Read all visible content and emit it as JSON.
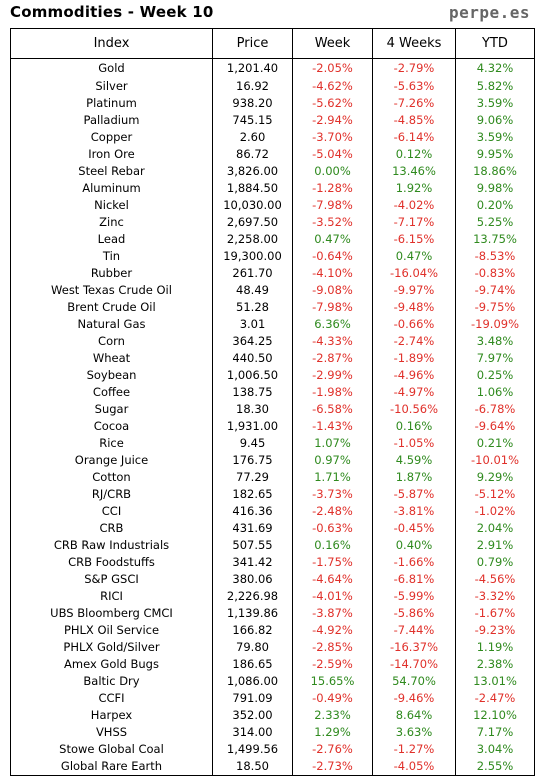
{
  "header": {
    "title": "Commodities - Week 10",
    "brand": "perpe.es"
  },
  "columns": [
    "Index",
    "Price",
    "Week",
    "4 Weeks",
    "YTD"
  ],
  "colors": {
    "negative": "#e0302a",
    "positive": "#2f8a1e"
  },
  "rows": [
    [
      "Gold",
      "1,201.40",
      "-2.05%",
      "-2.79%",
      "4.32%"
    ],
    [
      "Silver",
      "16.92",
      "-4.62%",
      "-5.63%",
      "5.82%"
    ],
    [
      "Platinum",
      "938.20",
      "-5.62%",
      "-7.26%",
      "3.59%"
    ],
    [
      "Palladium",
      "745.15",
      "-2.94%",
      "-4.85%",
      "9.06%"
    ],
    [
      "Copper",
      "2.60",
      "-3.70%",
      "-6.14%",
      "3.59%"
    ],
    [
      "Iron Ore",
      "86.72",
      "-5.04%",
      "0.12%",
      "9.95%"
    ],
    [
      "Steel Rebar",
      "3,826.00",
      "0.00%",
      "13.46%",
      "18.86%"
    ],
    [
      "Aluminum",
      "1,884.50",
      "-1.28%",
      "1.92%",
      "9.98%"
    ],
    [
      "Nickel",
      "10,030.00",
      "-7.98%",
      "-4.02%",
      "0.20%"
    ],
    [
      "Zinc",
      "2,697.50",
      "-3.52%",
      "-7.17%",
      "5.25%"
    ],
    [
      "Lead",
      "2,258.00",
      "0.47%",
      "-6.15%",
      "13.75%"
    ],
    [
      "Tin",
      "19,300.00",
      "-0.64%",
      "0.47%",
      "-8.53%"
    ],
    [
      "Rubber",
      "261.70",
      "-4.10%",
      "-16.04%",
      "-0.83%"
    ],
    [
      "West Texas Crude Oil",
      "48.49",
      "-9.08%",
      "-9.97%",
      "-9.74%"
    ],
    [
      "Brent Crude Oil",
      "51.28",
      "-7.98%",
      "-9.48%",
      "-9.75%"
    ],
    [
      "Natural Gas",
      "3.01",
      "6.36%",
      "-0.66%",
      "-19.09%"
    ],
    [
      "Corn",
      "364.25",
      "-4.33%",
      "-2.74%",
      "3.48%"
    ],
    [
      "Wheat",
      "440.50",
      "-2.87%",
      "-1.89%",
      "7.97%"
    ],
    [
      "Soybean",
      "1,006.50",
      "-2.99%",
      "-4.96%",
      "0.25%"
    ],
    [
      "Coffee",
      "138.75",
      "-1.98%",
      "-4.97%",
      "1.06%"
    ],
    [
      "Sugar",
      "18.30",
      "-6.58%",
      "-10.56%",
      "-6.78%"
    ],
    [
      "Cocoa",
      "1,931.00",
      "-1.43%",
      "0.16%",
      "-9.64%"
    ],
    [
      "Rice",
      "9.45",
      "1.07%",
      "-1.05%",
      "0.21%"
    ],
    [
      "Orange Juice",
      "176.75",
      "0.97%",
      "4.59%",
      "-10.01%"
    ],
    [
      "Cotton",
      "77.29",
      "1.71%",
      "1.87%",
      "9.29%"
    ],
    [
      "RJ/CRB",
      "182.65",
      "-3.73%",
      "-5.87%",
      "-5.12%"
    ],
    [
      "CCI",
      "416.36",
      "-2.48%",
      "-3.81%",
      "-1.02%"
    ],
    [
      "CRB",
      "431.69",
      "-0.63%",
      "-0.45%",
      "2.04%"
    ],
    [
      "CRB Raw Industrials",
      "507.55",
      "0.16%",
      "0.40%",
      "2.91%"
    ],
    [
      "CRB Foodstuffs",
      "341.42",
      "-1.75%",
      "-1.66%",
      "0.79%"
    ],
    [
      "S&P GSCI",
      "380.06",
      "-4.64%",
      "-6.81%",
      "-4.56%"
    ],
    [
      "RICI",
      "2,226.98",
      "-4.01%",
      "-5.99%",
      "-3.32%"
    ],
    [
      "UBS Bloomberg CMCI",
      "1,139.86",
      "-3.87%",
      "-5.86%",
      "-1.67%"
    ],
    [
      "PHLX Oil Service",
      "166.82",
      "-4.92%",
      "-7.44%",
      "-9.23%"
    ],
    [
      "PHLX Gold/Silver",
      "79.80",
      "-2.85%",
      "-16.37%",
      "1.19%"
    ],
    [
      "Amex Gold Bugs",
      "186.65",
      "-2.59%",
      "-14.70%",
      "2.38%"
    ],
    [
      "Baltic Dry",
      "1,086.00",
      "15.65%",
      "54.70%",
      "13.01%"
    ],
    [
      "CCFI",
      "791.09",
      "-0.49%",
      "-9.46%",
      "-2.47%"
    ],
    [
      "Harpex",
      "352.00",
      "2.33%",
      "8.64%",
      "12.10%"
    ],
    [
      "VHSS",
      "314.00",
      "1.29%",
      "3.63%",
      "7.17%"
    ],
    [
      "Stowe Global Coal",
      "1,499.56",
      "-2.76%",
      "-1.27%",
      "3.04%"
    ],
    [
      "Global Rare Earth",
      "18.50",
      "-2.73%",
      "-4.05%",
      "2.55%"
    ]
  ]
}
